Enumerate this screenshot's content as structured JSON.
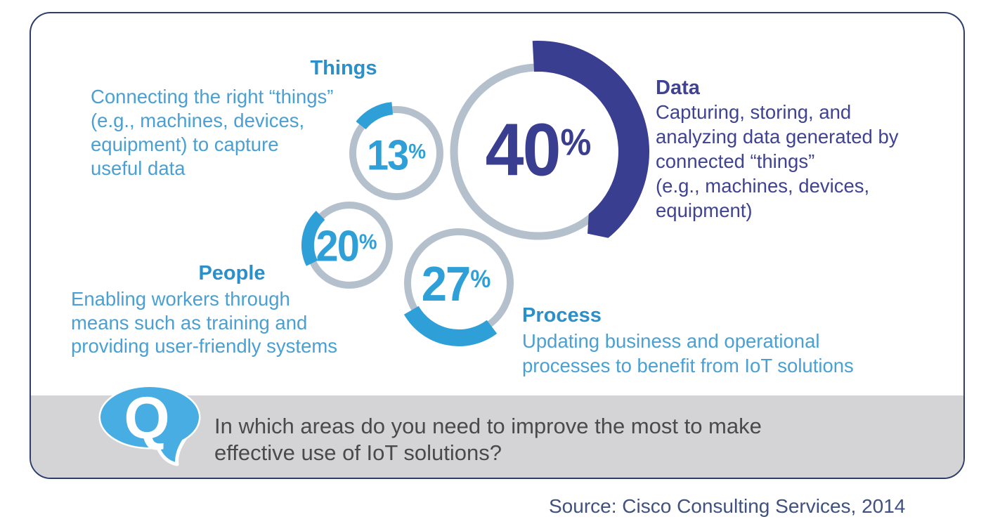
{
  "colors": {
    "light_blue": "#2f9fd8",
    "title_blue": "#2b8fca",
    "desc_blue": "#4aa0d3",
    "navy": "#3a3e90",
    "navy_text": "#3f4392",
    "ring_gray": "#b5c0cd",
    "band_gray": "#d4d4d6",
    "question_text": "#4a4a4c",
    "source_text": "#3e5180",
    "card_border": "#2e3e6c",
    "bubble_blue": "#47ade2",
    "bubble_letter": "#ffffff"
  },
  "chart_data": {
    "type": "pie",
    "subtype": "donut-gauges",
    "units": "%",
    "legend_position": "none",
    "segments": [
      {
        "label": "Things",
        "value": 13,
        "unit": "%",
        "accent": "#2f9fd8",
        "description_lines": [
          "Connecting the right “things”",
          "(e.g., machines, devices,",
          "equipment) to capture",
          "useful data"
        ]
      },
      {
        "label": "Data",
        "value": 40,
        "unit": "%",
        "accent": "#3a3e90",
        "description_lines": [
          "Capturing, storing, and",
          "analyzing data generated by",
          "connected “things”",
          "(e.g., machines, devices,",
          "equipment)"
        ]
      },
      {
        "label": "People",
        "value": 20,
        "unit": "%",
        "accent": "#2f9fd8",
        "description_lines": [
          "Enabling workers through",
          "means such as training and",
          "providing user-friendly systems"
        ]
      },
      {
        "label": "Process",
        "value": 27,
        "unit": "%",
        "accent": "#2f9fd8",
        "description_lines": [
          "Updating business and operational",
          "processes to benefit from IoT solutions"
        ]
      }
    ],
    "question": {
      "icon": "q-speech-bubble-icon",
      "icon_letter": "Q",
      "lines": [
        "In which areas do you need to improve the most to make",
        "effective use of IoT solutions?"
      ]
    },
    "source": "Source: Cisco Consulting Services, 2014"
  }
}
